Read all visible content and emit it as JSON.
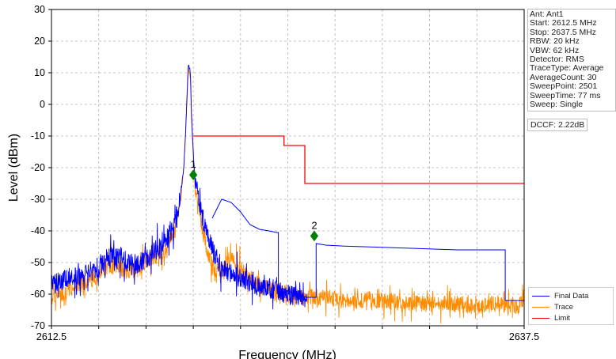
{
  "chart_data": {
    "type": "line",
    "xlabel": "Frequency (MHz)",
    "ylabel": "Level (dBm)",
    "xlim": [
      2612.5,
      2637.5
    ],
    "ylim": [
      -70,
      30
    ],
    "x_tick_labels": [
      "2612.5",
      "2637.5"
    ],
    "y_ticks": [
      30,
      20,
      10,
      0,
      -10,
      -20,
      -30,
      -40,
      -50,
      -60,
      -70
    ],
    "grid": true,
    "series": [
      {
        "name": "Final Data",
        "color": "#0000ff",
        "points": [
          [
            2612.5,
            -57
          ],
          [
            2613.0,
            -56
          ],
          [
            2613.5,
            -54
          ],
          [
            2614.0,
            -55
          ],
          [
            2614.5,
            -53
          ],
          [
            2615.0,
            -52
          ],
          [
            2615.5,
            -49
          ],
          [
            2616.0,
            -47
          ],
          [
            2616.5,
            -50
          ],
          [
            2617.0,
            -51
          ],
          [
            2617.5,
            -49
          ],
          [
            2618.0,
            -46
          ],
          [
            2618.5,
            -44
          ],
          [
            2619.0,
            -38
          ],
          [
            2619.3,
            -30
          ],
          [
            2619.5,
            -20
          ],
          [
            2619.6,
            -8
          ],
          [
            2619.7,
            8
          ],
          [
            2619.75,
            13
          ],
          [
            2619.85,
            10
          ],
          [
            2619.9,
            -2
          ],
          [
            2620.0,
            -15
          ],
          [
            2620.1,
            -24
          ],
          [
            2620.5,
            -36
          ],
          [
            2621.0,
            -46
          ],
          [
            2621.5,
            -52
          ],
          [
            2622.0,
            -53
          ],
          [
            2622.5,
            -55
          ],
          [
            2623.0,
            -56
          ],
          [
            2623.5,
            -58
          ],
          [
            2624.0,
            -58
          ],
          [
            2624.5,
            -59
          ],
          [
            2625.0,
            -60
          ],
          [
            2625.5,
            -60
          ],
          [
            2626.0,
            -61
          ]
        ]
      },
      {
        "name": "Trace",
        "color": "#ff8c00",
        "points": [
          [
            2612.5,
            -61
          ],
          [
            2613.0,
            -60
          ],
          [
            2613.5,
            -58
          ],
          [
            2614.0,
            -57
          ],
          [
            2614.5,
            -55
          ],
          [
            2615.0,
            -54
          ],
          [
            2615.5,
            -51
          ],
          [
            2616.0,
            -51
          ],
          [
            2616.5,
            -53
          ],
          [
            2617.0,
            -52
          ],
          [
            2617.5,
            -50
          ],
          [
            2618.0,
            -48
          ],
          [
            2618.5,
            -46
          ],
          [
            2619.0,
            -40
          ],
          [
            2619.3,
            -31
          ],
          [
            2619.5,
            -20
          ],
          [
            2619.6,
            -9
          ],
          [
            2619.7,
            6
          ],
          [
            2619.75,
            11
          ],
          [
            2619.85,
            8
          ],
          [
            2619.9,
            -4
          ],
          [
            2620.0,
            -17
          ],
          [
            2620.1,
            -26
          ],
          [
            2620.5,
            -40
          ],
          [
            2621.0,
            -52
          ],
          [
            2621.5,
            -52
          ],
          [
            2622.0,
            -48
          ],
          [
            2622.5,
            -52
          ],
          [
            2623.0,
            -55
          ],
          [
            2623.5,
            -57
          ],
          [
            2624.0,
            -58
          ],
          [
            2625.0,
            -60
          ],
          [
            2626.0,
            -61
          ],
          [
            2627.0,
            -61
          ],
          [
            2628.0,
            -62
          ],
          [
            2629.0,
            -62
          ],
          [
            2630.0,
            -62
          ],
          [
            2631.0,
            -63
          ],
          [
            2632.0,
            -63
          ],
          [
            2633.0,
            -63
          ],
          [
            2634.0,
            -63
          ],
          [
            2635.0,
            -64
          ],
          [
            2636.0,
            -63
          ],
          [
            2637.0,
            -64
          ],
          [
            2637.5,
            -62
          ]
        ]
      },
      {
        "name": "Limit",
        "color": "#ff0000",
        "points": [
          [
            2620.0,
            -10
          ],
          [
            2624.8,
            -10
          ],
          [
            2624.8,
            -13
          ],
          [
            2625.9,
            -13
          ],
          [
            2625.9,
            -25
          ],
          [
            2637.5,
            -25
          ]
        ]
      }
    ],
    "final_data_envelope": {
      "color": "#0000ff",
      "points": [
        [
          2621.0,
          -36
        ],
        [
          2621.5,
          -30
        ],
        [
          2622.0,
          -31
        ],
        [
          2622.5,
          -34
        ],
        [
          2623.0,
          -38
        ],
        [
          2623.5,
          -39.5
        ],
        [
          2624.0,
          -40
        ],
        [
          2624.4,
          -40.5
        ],
        [
          2624.5,
          -40.5
        ],
        [
          2624.5,
          -58
        ],
        [
          2626.0,
          -61
        ],
        [
          2626.5,
          -61
        ],
        [
          2626.5,
          -44
        ],
        [
          2627.0,
          -44.5
        ],
        [
          2628.0,
          -44.8
        ],
        [
          2629.0,
          -45
        ],
        [
          2630.0,
          -45.2
        ],
        [
          2631.0,
          -45.4
        ],
        [
          2632.0,
          -45.6
        ],
        [
          2633.0,
          -45.8
        ],
        [
          2634.0,
          -46
        ],
        [
          2635.0,
          -46
        ],
        [
          2636.0,
          -46
        ],
        [
          2636.5,
          -46
        ],
        [
          2636.5,
          -62
        ],
        [
          2637.5,
          -62
        ]
      ]
    },
    "markers": [
      {
        "label": "1",
        "x": 2620.0,
        "y": -22.3,
        "color": "#008000"
      },
      {
        "label": "2",
        "x": 2626.4,
        "y": -41.6,
        "color": "#008000"
      }
    ]
  },
  "info": {
    "lines": [
      "Ant: Ant1",
      "Start: 2612.5 MHz",
      "Stop: 2637.5 MHz",
      "RBW: 20 kHz",
      "VBW: 62 kHz",
      "Detector: RMS",
      "TraceType: Average",
      "AverageCount: 30",
      "SweepPoint: 2501",
      "SweepTime: 77 ms",
      "Sweep: Single"
    ],
    "dccf": "DCCF: 2.22dB"
  },
  "legend": [
    {
      "label": "Final Data",
      "color": "#0000ff"
    },
    {
      "label": "Trace",
      "color": "#ff8c00"
    },
    {
      "label": "Limit",
      "color": "#ff0000"
    }
  ]
}
